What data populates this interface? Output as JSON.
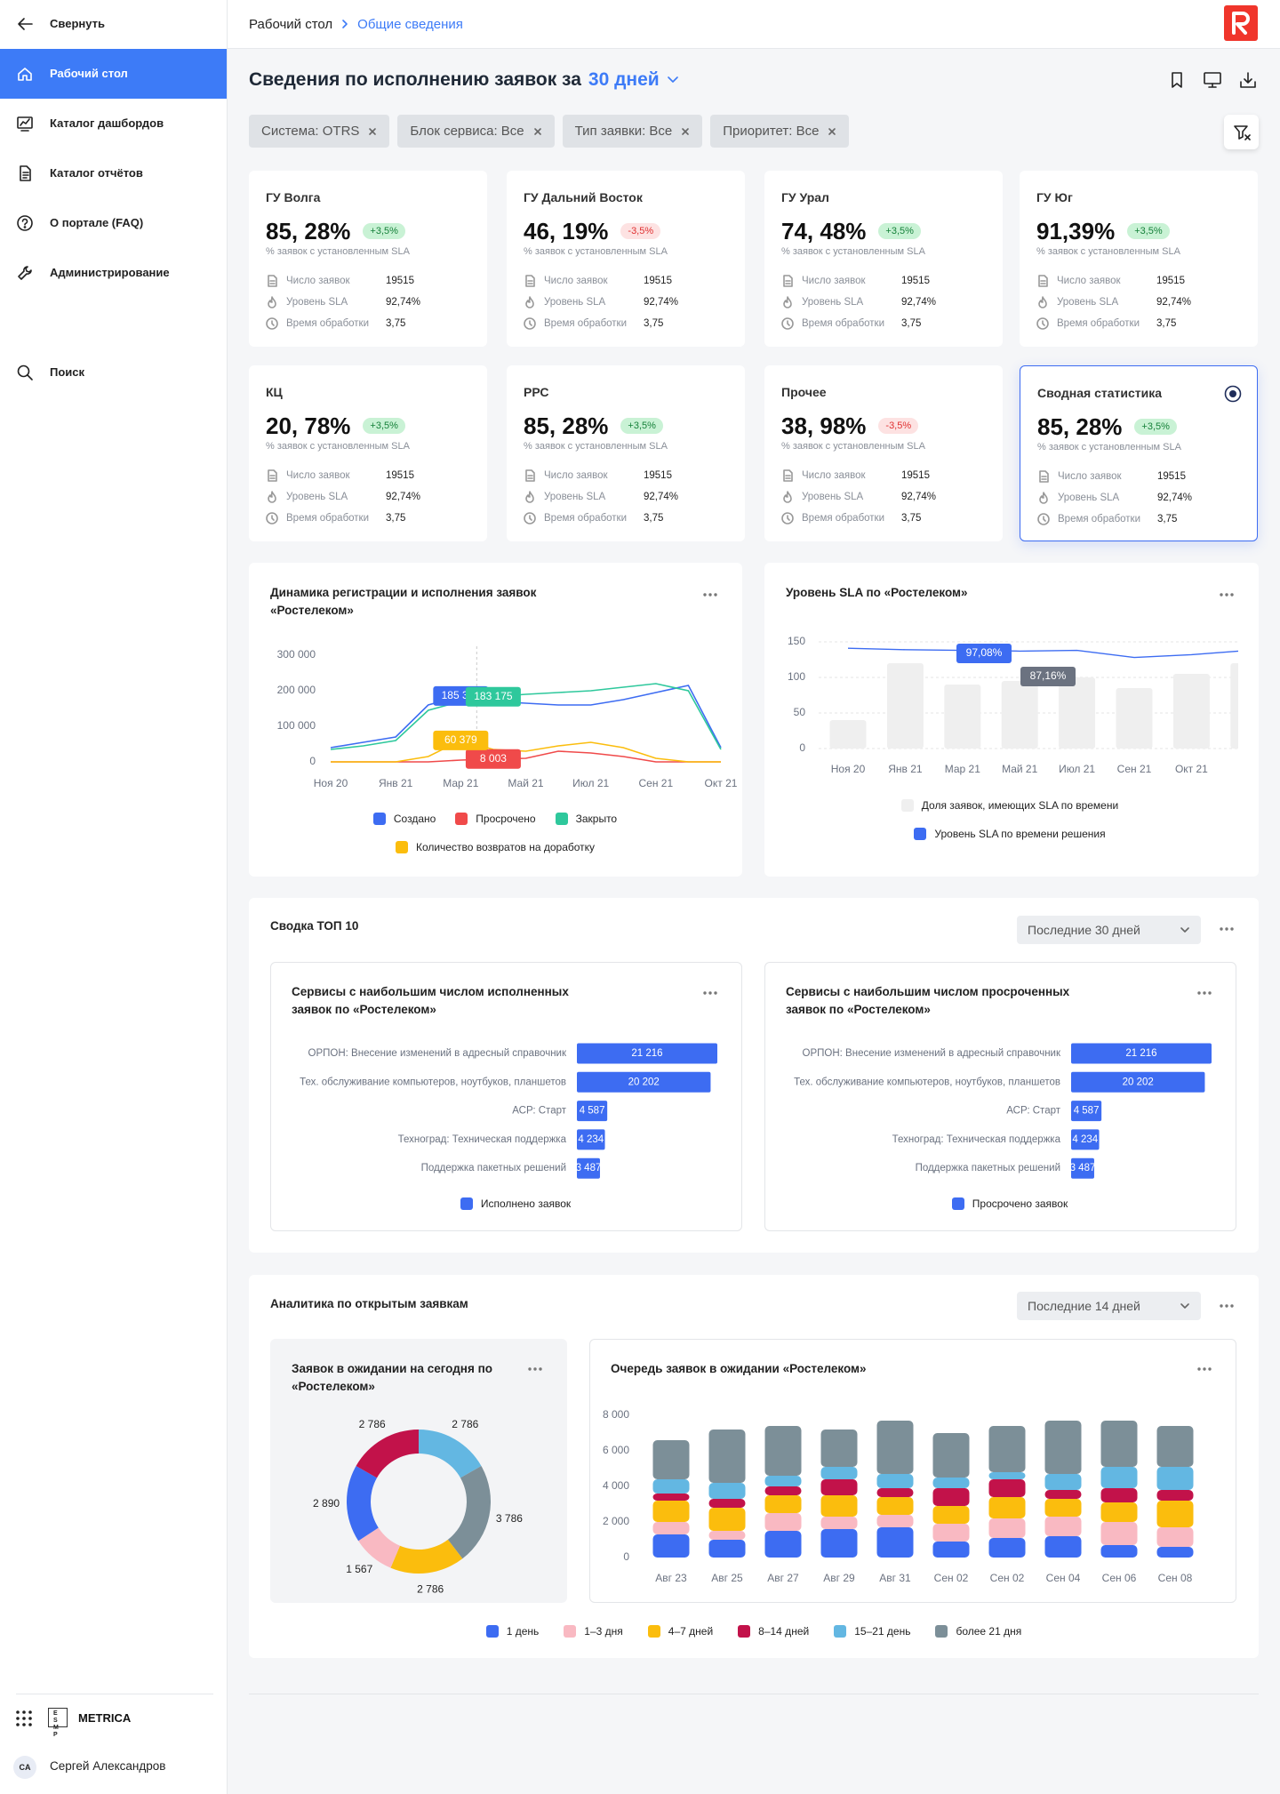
{
  "sidebar": {
    "collapse": "Свернуть",
    "nav": [
      "Рабочий стол",
      "Каталог дашбордов",
      "Каталог отчётов",
      "О портале (FAQ)",
      "Администрирование"
    ],
    "search": "Поиск",
    "brand_logo": "ESMP",
    "brand": "METRICA",
    "user_initials": "CA",
    "user_name": "Сергей Александров"
  },
  "header": {
    "breadcrumb": [
      "Рабочий стол",
      "Общие сведения"
    ],
    "title": "Сведения по исполнению заявок за",
    "period": "30 дней",
    "filters": [
      "Система: OTRS",
      "Блок сервиса: Все",
      "Тип заявки: Все",
      "Приоритет: Все"
    ]
  },
  "kpi_cards": [
    {
      "name": "ГУ Волга",
      "value": "85, 28%",
      "delta": "+3,5%",
      "subtitle": "% заявок с установленным SLA",
      "metrics": [
        {
          "label": "Число заявок",
          "value": "19515"
        },
        {
          "label": "Уровень SLA",
          "value": "92,74%"
        },
        {
          "label": "Время обработки",
          "value": "3,75"
        }
      ]
    },
    {
      "name": "ГУ Дальний Восток",
      "value": "46, 19%",
      "delta": "-3,5%",
      "subtitle": "% заявок с установленным SLA",
      "metrics": [
        {
          "label": "Число заявок",
          "value": "19515"
        },
        {
          "label": "Уровень SLA",
          "value": "92,74%"
        },
        {
          "label": "Время обработки",
          "value": "3,75"
        }
      ]
    },
    {
      "name": "ГУ Урал",
      "value": "74, 48%",
      "delta": "+3,5%",
      "subtitle": "% заявок с установленным SLA",
      "metrics": [
        {
          "label": "Число заявок",
          "value": "19515"
        },
        {
          "label": "Уровень SLA",
          "value": "92,74%"
        },
        {
          "label": "Время обработки",
          "value": "3,75"
        }
      ]
    },
    {
      "name": "ГУ Юг",
      "value": "91,39%",
      "delta": "+3,5%",
      "subtitle": "% заявок с установленным SLA",
      "metrics": [
        {
          "label": "Число заявок",
          "value": "19515"
        },
        {
          "label": "Уровень SLA",
          "value": "92,74%"
        },
        {
          "label": "Время обработки",
          "value": "3,75"
        }
      ]
    },
    {
      "name": "КЦ",
      "value": "20, 78%",
      "delta": "+3,5%",
      "subtitle": "% заявок с установленным SLA",
      "metrics": [
        {
          "label": "Число заявок",
          "value": "19515"
        },
        {
          "label": "Уровень SLA",
          "value": "92,74%"
        },
        {
          "label": "Время обработки",
          "value": "3,75"
        }
      ]
    },
    {
      "name": "РРС",
      "value": "85, 28%",
      "delta": "+3,5%",
      "subtitle": "% заявок с установленным SLA",
      "metrics": [
        {
          "label": "Число заявок",
          "value": "19515"
        },
        {
          "label": "Уровень SLA",
          "value": "92,74%"
        },
        {
          "label": "Время обработки",
          "value": "3,75"
        }
      ]
    },
    {
      "name": "Прочее",
      "value": "38, 98%",
      "delta": "-3,5%",
      "subtitle": "% заявок с установленным SLA",
      "metrics": [
        {
          "label": "Число заявок",
          "value": "19515"
        },
        {
          "label": "Уровень SLA",
          "value": "92,74%"
        },
        {
          "label": "Время обработки",
          "value": "3,75"
        }
      ]
    },
    {
      "name": "Сводная статистика",
      "value": "85, 28%",
      "delta": "+3,5%",
      "subtitle": "% заявок с установленным SLA",
      "selected": true,
      "metrics": [
        {
          "label": "Число заявок",
          "value": "19515"
        },
        {
          "label": "Уровень SLA",
          "value": "92,74%"
        },
        {
          "label": "Время обработки",
          "value": "3,75"
        }
      ]
    }
  ],
  "sections": [
    {
      "title": "Сводка ТОП 10",
      "range": "Последние 30 дней"
    },
    {
      "title": "Аналитика по открытым заявкам",
      "range": "Последние 14 дней"
    }
  ],
  "chart_data": [
    {
      "type": "line",
      "title": "Динамика регистрации и исполнения заявок «Ростелеком»",
      "categories": [
        "Ноя 20",
        null,
        "Янв 21",
        null,
        "Мар 21",
        null,
        "Май 21",
        null,
        "Июл 21",
        null,
        "Сен 21",
        null,
        "Окт 21"
      ],
      "ylim": [
        0,
        300000
      ],
      "yticks": [
        0,
        {
          "value": 100000,
          "label": "100 000"
        },
        {
          "value": 200000,
          "label": "200 000"
        },
        {
          "value": 300000,
          "label": "300 000"
        }
      ],
      "grid": false,
      "series": [
        {
          "name": "Создано",
          "color": "#3d6cf2",
          "values": [
            40000,
            55000,
            70000,
            160000,
            185345,
            170000,
            165000,
            160000,
            160000,
            175000,
            195000,
            215000,
            40000
          ],
          "value_labels": [
            null,
            null,
            null,
            null,
            "185 345",
            null,
            null,
            null,
            null,
            null,
            null,
            null,
            null
          ]
        },
        {
          "name": "Просрочено",
          "color": "#f04a4a",
          "values": [
            0,
            0,
            0,
            0,
            5000,
            8003,
            10000,
            30000,
            25000,
            15000,
            0,
            0,
            0
          ],
          "value_labels": [
            null,
            null,
            null,
            null,
            null,
            "8 003",
            null,
            null,
            null,
            null,
            null,
            null,
            null
          ]
        },
        {
          "name": "Закрыто",
          "color": "#2ec89c",
          "values": [
            35000,
            45000,
            60000,
            145000,
            170000,
            183175,
            190000,
            195000,
            200000,
            210000,
            220000,
            200000,
            35000
          ],
          "value_labels": [
            null,
            null,
            null,
            null,
            null,
            "183 175",
            null,
            null,
            null,
            null,
            null,
            null,
            null
          ]
        },
        {
          "name": "Количество возвратов на доработку",
          "color": "#fbbd0d",
          "values": [
            0,
            0,
            0,
            15000,
            60379,
            35000,
            30000,
            45000,
            55000,
            40000,
            10000,
            0,
            0
          ],
          "value_labels": [
            null,
            null,
            null,
            null,
            "60 379",
            null,
            null,
            null,
            null,
            null,
            null,
            null,
            null
          ]
        }
      ]
    },
    {
      "type": "combo",
      "title": "Уровень SLA по «Ростелеком»",
      "categories": [
        "Ноя 20",
        "Янв 21",
        "Мар 21",
        "Май 21",
        "Июл 21",
        "Сен 21",
        "Окт 21",
        null
      ],
      "ylim": [
        0,
        150
      ],
      "yticks": [
        0,
        50,
        100,
        150
      ],
      "grid": true,
      "series": [
        {
          "name": "Доля заявок, имеющих SLA по времени",
          "type": "bar",
          "color": "#efefef",
          "values": [
            40,
            120,
            90,
            95,
            100,
            85,
            105,
            120
          ]
        },
        {
          "name": "Уровень SLA по времени решения",
          "type": "line",
          "color": "#3d6cf2",
          "values": [
            141,
            139,
            138,
            137,
            138,
            128,
            132,
            138
          ]
        }
      ],
      "annotations": [
        {
          "text": "97,08%",
          "color": "#3d6cf2"
        },
        {
          "text": "87,16%",
          "color": "#6b7280"
        }
      ]
    },
    {
      "type": "bar",
      "orientation": "horizontal",
      "title": "Сервисы с наибольшим числом исполненных заявок по «Ростелеком»",
      "categories": [
        "ОРПОН: Внесение изменений в адресный справочник",
        "Тех. обслуживание компьютеров, ноутбуков, планшетов",
        "АСР: Старт",
        "Техноград: Техническая поддержка",
        "Поддержка пакетных решений"
      ],
      "series": [
        {
          "name": "Исполнено заявок",
          "color": "#3d6cf2",
          "values": [
            21216,
            20202,
            4587,
            4234,
            3487
          ],
          "value_labels": [
            "21 216",
            "20 202",
            "4 587",
            "4 234",
            "3 487"
          ]
        }
      ]
    },
    {
      "type": "bar",
      "orientation": "horizontal",
      "title": "Сервисы с наибольшим числом просроченных заявок по «Ростелеком»",
      "categories": [
        "ОРПОН: Внесение изменений в адресный справочник",
        "Тех. обслуживание компьютеров, ноутбуков, планшетов",
        "АСР: Старт",
        "Техноград: Техническая поддержка",
        "Поддержка пакетных решений"
      ],
      "series": [
        {
          "name": "Просрочено заявок",
          "color": "#3d6cf2",
          "values": [
            21216,
            20202,
            4587,
            4234,
            3487
          ],
          "value_labels": [
            "21 216",
            "20 202",
            "4 587",
            "4 234",
            "3 487"
          ]
        }
      ]
    },
    {
      "type": "pie",
      "donut": true,
      "title": "Заявок в ожидании на сегодня по «Ростелеком»",
      "values": [
        2786,
        3786,
        2786,
        1567,
        2890,
        2786
      ],
      "value_labels": [
        "2 786",
        "3 786",
        "2 786",
        "1 567",
        "2 890",
        "2 786"
      ],
      "colors": [
        "#63b7e2",
        "#7c8f98",
        "#fbbd0d",
        "#f9b9c2",
        "#3d6cf2",
        "#c2124a"
      ]
    },
    {
      "type": "stacked_bar",
      "title": "Очередь заявок в ожидании «Ростелеком»",
      "categories": [
        "Авг 23",
        "Авг 25",
        "Авг 27",
        "Авг 29",
        "Авг 31",
        "Сен 02",
        "Сен 02",
        "Сен 04",
        "Сен 06",
        "Сен 08"
      ],
      "ylim": [
        0,
        8000
      ],
      "yticks": [
        0,
        {
          "value": 2000,
          "label": "2 000"
        },
        {
          "value": 4000,
          "label": "4 000"
        },
        {
          "value": 6000,
          "label": "6 000"
        },
        {
          "value": 8000,
          "label": "8 000"
        }
      ],
      "grid": false,
      "series": [
        {
          "name": "1 день",
          "color": "#3d6cf2",
          "values": [
            1300,
            1000,
            1500,
            1600,
            1700,
            900,
            1100,
            1200,
            700,
            600
          ]
        },
        {
          "name": "1–3 дня",
          "color": "#f9b9c2",
          "values": [
            700,
            500,
            1000,
            700,
            700,
            1000,
            1100,
            1100,
            1300,
            1100
          ]
        },
        {
          "name": "4–7 дней",
          "color": "#fbbd0d",
          "values": [
            1200,
            1300,
            1000,
            1200,
            1000,
            1000,
            1200,
            1000,
            1100,
            1500
          ]
        },
        {
          "name": "8–14 дней",
          "color": "#c2124a",
          "values": [
            400,
            500,
            500,
            900,
            500,
            1000,
            1000,
            500,
            800,
            600
          ]
        },
        {
          "name": "15–21 день",
          "color": "#63b7e2",
          "values": [
            800,
            900,
            600,
            700,
            800,
            600,
            400,
            900,
            1200,
            1300
          ]
        },
        {
          "name": "более 21 дня",
          "color": "#7c8f98",
          "values": [
            2200,
            3000,
            2800,
            2100,
            3000,
            2500,
            2600,
            3000,
            2600,
            2300
          ]
        }
      ]
    }
  ]
}
